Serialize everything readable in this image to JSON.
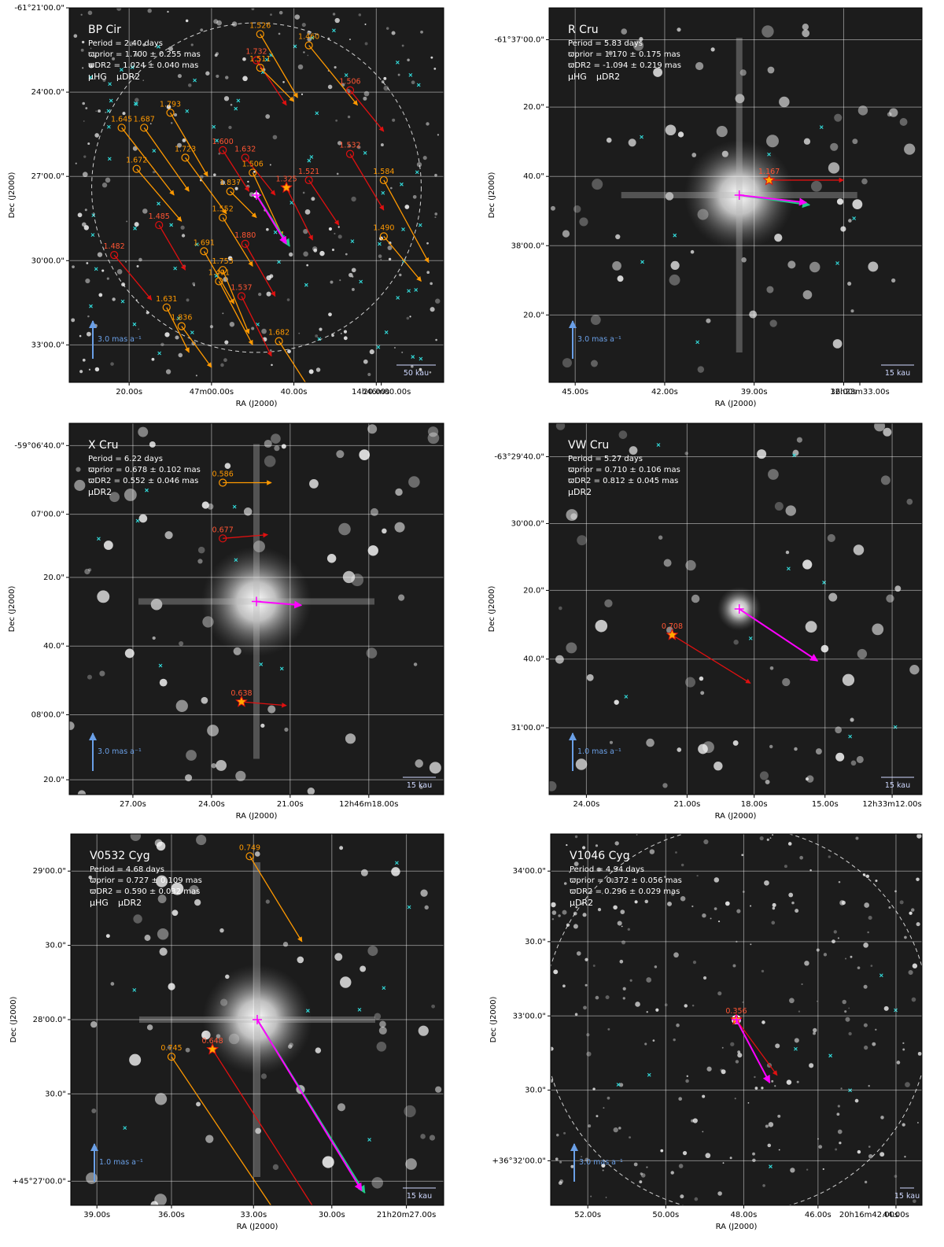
{
  "panels": [
    {
      "name": "BP Cir",
      "period": "Period =   2.40 days",
      "prior": "ϖprior = 1.700 ± 0.255 mas",
      "dr2": "ϖDR2 = 1.024 ± 0.040 mas",
      "legend": [
        "μHG",
        "μDR2"
      ],
      "scale_arrow": "3.0 mas a⁻¹",
      "scale_bar": "50 kau",
      "xlabel": "RA (J2000)",
      "ylabel": "Dec (J2000)",
      "xticks": [
        "20.00s",
        "47m00.00s",
        "40.00s",
        "20.00s",
        "14h46m00.00s"
      ],
      "yticks": [
        "-61°21'00.0\"",
        "24'00.0\"",
        "27'00.0\"",
        "30'00.0\"",
        "33'00.0\""
      ],
      "companions": [
        {
          "label": "1.526",
          "color": "orange",
          "pos": [
            0.51,
            0.07
          ],
          "vec": [
            0.1,
            0.17
          ]
        },
        {
          "label": "1.460",
          "color": "orange",
          "pos": [
            0.64,
            0.1
          ],
          "vec": [
            0.13,
            0.16
          ]
        },
        {
          "label": "1.732",
          "color": "red",
          "pos": [
            0.5,
            0.14
          ],
          "vec": [
            0.08,
            0.12
          ]
        },
        {
          "label": "1.511",
          "color": "orange",
          "pos": [
            0.51,
            0.16
          ],
          "vec": [
            0.09,
            0.09
          ]
        },
        {
          "label": "1.506",
          "color": "red",
          "pos": [
            0.75,
            0.22
          ],
          "vec": [
            0.09,
            0.11
          ]
        },
        {
          "label": "1.793",
          "color": "orange",
          "pos": [
            0.27,
            0.28
          ],
          "vec": [
            0.1,
            0.17
          ]
        },
        {
          "label": "1.687",
          "color": "orange",
          "pos": [
            0.2,
            0.32
          ],
          "vec": [
            0.12,
            0.17
          ]
        },
        {
          "label": "1.645",
          "color": "orange",
          "pos": [
            0.14,
            0.32
          ],
          "vec": [
            0.14,
            0.18
          ]
        },
        {
          "label": "1.600",
          "color": "red",
          "pos": [
            0.41,
            0.38
          ],
          "vec": [
            0.07,
            0.11
          ]
        },
        {
          "label": "1.632",
          "color": "red",
          "pos": [
            0.47,
            0.4
          ],
          "vec": [
            0.08,
            0.1
          ]
        },
        {
          "label": "1.532",
          "color": "red",
          "pos": [
            0.75,
            0.39
          ],
          "vec": [
            0.09,
            0.15
          ]
        },
        {
          "label": "1.723",
          "color": "orange",
          "pos": [
            0.31,
            0.4
          ],
          "vec": [
            0.11,
            0.15
          ]
        },
        {
          "label": "1.672",
          "color": "orange",
          "pos": [
            0.18,
            0.43
          ],
          "vec": [
            0.12,
            0.14
          ]
        },
        {
          "label": "1.506",
          "color": "orange",
          "pos": [
            0.49,
            0.44
          ],
          "vec": [
            0.08,
            0.17
          ]
        },
        {
          "label": "1.521",
          "color": "red",
          "pos": [
            0.64,
            0.46
          ],
          "vec": [
            0.08,
            0.12
          ]
        },
        {
          "label": "1.584",
          "color": "orange",
          "pos": [
            0.84,
            0.46
          ],
          "vec": [
            0.12,
            0.22
          ]
        },
        {
          "label": "1.837",
          "color": "orange",
          "pos": [
            0.43,
            0.49
          ],
          "vec": [
            0.07,
            0.07
          ]
        },
        {
          "label": "1.325",
          "color": "star",
          "pos": [
            0.58,
            0.48
          ],
          "vec": [
            0.07,
            0.14
          ]
        },
        {
          "label": "1.552",
          "color": "orange",
          "pos": [
            0.41,
            0.56
          ],
          "vec": [
            0.08,
            0.13
          ]
        },
        {
          "label": "1.485",
          "color": "red",
          "pos": [
            0.24,
            0.58
          ],
          "vec": [
            0.07,
            0.12
          ]
        },
        {
          "label": "1.490",
          "color": "orange",
          "pos": [
            0.84,
            0.61
          ],
          "vec": [
            0.1,
            0.12
          ]
        },
        {
          "label": "1.482",
          "color": "red",
          "pos": [
            0.12,
            0.66
          ],
          "vec": [
            0.1,
            0.12
          ]
        },
        {
          "label": "1.691",
          "color": "orange",
          "pos": [
            0.36,
            0.65
          ],
          "vec": [
            0.08,
            0.14
          ]
        },
        {
          "label": "1.880",
          "color": "red",
          "pos": [
            0.47,
            0.63
          ],
          "vec": [
            0.08,
            0.14
          ]
        },
        {
          "label": "1.753",
          "color": "orange",
          "pos": [
            0.41,
            0.7
          ],
          "vec": [
            0.07,
            0.17
          ]
        },
        {
          "label": "1.491",
          "color": "orange",
          "pos": [
            0.4,
            0.73
          ],
          "vec": [
            0.09,
            0.17
          ]
        },
        {
          "label": "1.537",
          "color": "red",
          "pos": [
            0.46,
            0.77
          ],
          "vec": [
            0.08,
            0.16
          ]
        },
        {
          "label": "1.631",
          "color": "orange",
          "pos": [
            0.26,
            0.8
          ],
          "vec": [
            0.06,
            0.12
          ]
        },
        {
          "label": "1.836",
          "color": "orange",
          "pos": [
            0.3,
            0.85
          ],
          "vec": [
            0.08,
            0.11
          ]
        },
        {
          "label": "1.682",
          "color": "orange",
          "pos": [
            0.56,
            0.89
          ],
          "vec": [
            0.09,
            0.14
          ]
        }
      ],
      "target": {
        "pos": [
          0.5,
          0.5
        ],
        "vec": [
          0.08,
          0.13
        ]
      }
    },
    {
      "name": "R Cru",
      "period": "Period =   5.83 days",
      "prior": "ϖprior = 1.170 ± 0.175 mas",
      "dr2": "ϖDR2 = -1.094 ± 0.219 mas",
      "legend": [
        "μHG",
        "μDR2"
      ],
      "scale_arrow": "3.0 mas a⁻¹",
      "scale_bar": "15 kau",
      "xlabel": "RA (J2000)",
      "ylabel": "Dec (J2000)",
      "xticks": [
        "45.00s",
        "42.00s",
        "39.00s",
        "36.00s",
        "12h23m33.00s"
      ],
      "yticks": [
        "-61°37'00.0\"",
        "20.0\"",
        "40.0\"",
        "38'00.0\"",
        "20.0\""
      ],
      "companions": [
        {
          "label": "1.167",
          "color": "star",
          "pos": [
            0.59,
            0.46
          ],
          "vec": [
            0.2,
            0.0
          ]
        }
      ],
      "target": {
        "pos": [
          0.51,
          0.5
        ],
        "vec": [
          0.18,
          0.02
        ]
      }
    },
    {
      "name": "X Cru",
      "period": "Period =   6.22 days",
      "prior": "ϖprior = 0.678 ± 0.102 mas",
      "dr2": "ϖDR2 = 0.552 ± 0.046 mas",
      "legend": [
        "μDR2"
      ],
      "scale_arrow": "3.0 mas a⁻¹",
      "scale_bar": "15 kau",
      "xlabel": "RA (J2000)",
      "ylabel": "Dec (J2000)",
      "xticks": [
        "27.00s",
        "24.00s",
        "21.00s",
        "12h46m18.00s"
      ],
      "yticks": [
        "-59°06'40.0\"",
        "07'00.0\"",
        "20.0\"",
        "40.0\"",
        "08'00.0\"",
        "20.0\""
      ],
      "companions": [
        {
          "label": "0.586",
          "color": "orange",
          "pos": [
            0.41,
            0.16
          ],
          "vec": [
            0.13,
            0.0
          ]
        },
        {
          "label": "0.677",
          "color": "red",
          "pos": [
            0.41,
            0.31
          ],
          "vec": [
            0.12,
            -0.01
          ]
        },
        {
          "label": "0.638",
          "color": "star",
          "pos": [
            0.46,
            0.75
          ],
          "vec": [
            0.12,
            0.01
          ]
        }
      ],
      "target": {
        "pos": [
          0.5,
          0.48
        ],
        "vec": [
          0.12,
          0.01
        ]
      }
    },
    {
      "name": "VW Cru",
      "period": "Period =   5.27 days",
      "prior": "ϖprior = 0.710 ± 0.106 mas",
      "dr2": "ϖDR2 = 0.812 ± 0.045 mas",
      "legend": [
        "μDR2"
      ],
      "scale_arrow": "1.0 mas a⁻¹",
      "scale_bar": "15 kau",
      "xlabel": "RA (J2000)",
      "ylabel": "Dec (J2000)",
      "xticks": [
        "24.00s",
        "21.00s",
        "18.00s",
        "15.00s",
        "12h33m12.00s"
      ],
      "yticks": [
        "-63°29'40.0\"",
        "30'00.0\"",
        "20.0\"",
        "40.0\"",
        "31'00.0\""
      ],
      "companions": [
        {
          "label": "0.708",
          "color": "star",
          "pos": [
            0.33,
            0.57
          ],
          "vec": [
            0.21,
            0.13
          ]
        }
      ],
      "target": {
        "pos": [
          0.51,
          0.5
        ],
        "vec": [
          0.21,
          0.14
        ]
      }
    },
    {
      "name": "V0532 Cyg",
      "period": "Period =   4.68 days",
      "prior": "ϖprior = 0.727 ± 0.109 mas",
      "dr2": "ϖDR2 = 0.590 ± 0.032 mas",
      "legend": [
        "μHG",
        "μDR2"
      ],
      "scale_arrow": "1.0 mas a⁻¹",
      "scale_bar": "15 kau",
      "xlabel": "RA (J2000)",
      "ylabel": "Dec (J2000)",
      "xticks": [
        "39.00s",
        "36.00s",
        "33.00s",
        "30.00s",
        "21h20m27.00s"
      ],
      "yticks": [
        "29'00.0\"",
        "30.0\"",
        "28'00.0\"",
        "30.0\"",
        "+45°27'00.0\""
      ],
      "companions": [
        {
          "label": "0.749",
          "color": "orange",
          "pos": [
            0.48,
            0.06
          ],
          "vec": [
            0.14,
            0.23
          ]
        },
        {
          "label": "0.648",
          "color": "star",
          "pos": [
            0.38,
            0.58
          ],
          "vec": [
            0.28,
            0.44
          ]
        },
        {
          "label": "0.745",
          "color": "orange",
          "pos": [
            0.27,
            0.6
          ],
          "vec": [
            0.28,
            0.42
          ]
        }
      ],
      "target": {
        "pos": [
          0.5,
          0.5
        ],
        "vec": [
          0.28,
          0.46
        ]
      }
    },
    {
      "name": "V1046 Cyg",
      "period": "Period =   4.94 days",
      "prior": "ϖprior = 0.372 ± 0.056 mas",
      "dr2": "ϖDR2 = 0.296 ± 0.029 mas",
      "legend": [
        "μDR2"
      ],
      "scale_arrow": "3.0 mas a⁻¹",
      "scale_bar": "15 kau",
      "xlabel": "RA (J2000)",
      "ylabel": "Dec (J2000)",
      "xticks": [
        "52.00s",
        "50.00s",
        "48.00s",
        "46.00s",
        "44.00s",
        "20h16m42.00s"
      ],
      "yticks": [
        "34'00.0\"",
        "30.0\"",
        "33'00.0\"",
        "30.0\"",
        "+36°32'00.0\""
      ],
      "companions": [
        {
          "label": "0.356",
          "color": "star",
          "pos": [
            0.5,
            0.5
          ],
          "vec": [
            0.11,
            0.15
          ]
        }
      ],
      "target": {
        "pos": [
          0.5,
          0.5
        ],
        "vec": [
          0.09,
          0.17
        ]
      }
    }
  ],
  "colors": {
    "orange": "#ff9900",
    "red": "#e01010",
    "magenta": "#ff00ff",
    "hg": "#22cc88",
    "cyan": "#33dddd",
    "scale": "#6a9fe6"
  }
}
